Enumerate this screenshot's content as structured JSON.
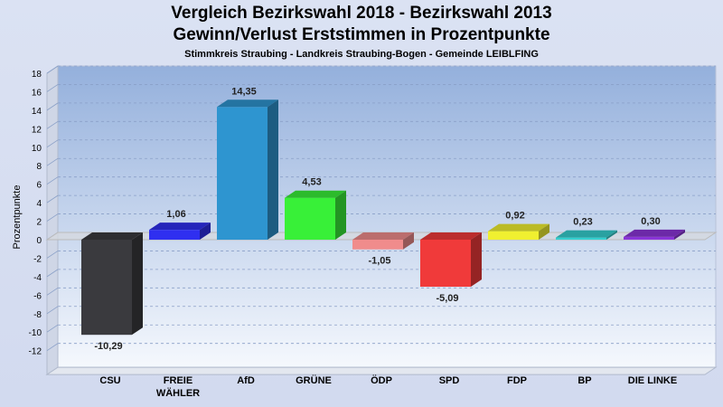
{
  "title_line1": "Vergleich Bezirkswahl 2018 - Bezirkswahl 2013",
  "title_line2": "Gewinn/Verlust Erststimmen in Prozentpunkte",
  "subtitle": "Stimmkreis Straubing - Landkreis Straubing-Bogen - Gemeinde LEIBLFING",
  "chart_data": {
    "type": "bar",
    "title": "Vergleich Bezirkswahl 2018 - Bezirkswahl 2013",
    "subtitle": "Gewinn/Verlust Erststimmen in Prozentpunkte",
    "ylabel": "Prozentpunkte",
    "xlabel": "",
    "ylim": [
      -14,
      18
    ],
    "yticks": [
      18,
      16,
      14,
      12,
      10,
      8,
      6,
      4,
      2,
      0,
      -2,
      -4,
      -6,
      -8,
      -10,
      -12
    ],
    "categories": [
      [
        "CSU"
      ],
      [
        "FREIE",
        "WÄHLER"
      ],
      [
        "AfD"
      ],
      [
        "GRÜNE"
      ],
      [
        "ÖDP"
      ],
      [
        "SPD"
      ],
      [
        "FDP"
      ],
      [
        "BP"
      ],
      [
        "DIE LINKE"
      ]
    ],
    "values": [
      -10.29,
      1.06,
      14.35,
      4.53,
      -1.05,
      -5.09,
      0.92,
      0.23,
      0.3
    ],
    "value_labels": [
      "-10,29",
      "1,06",
      "14,35",
      "4,53",
      "-1,05",
      "-5,09",
      "0,92",
      "0,23",
      "0,30"
    ],
    "colors": [
      "#3a3a3e",
      "#2f2ff0",
      "#2e95d0",
      "#38f038",
      "#f08c8c",
      "#f03a3a",
      "#f0f030",
      "#35cfcf",
      "#8a35d8"
    ],
    "grid": true,
    "grid_style": "dashed"
  }
}
